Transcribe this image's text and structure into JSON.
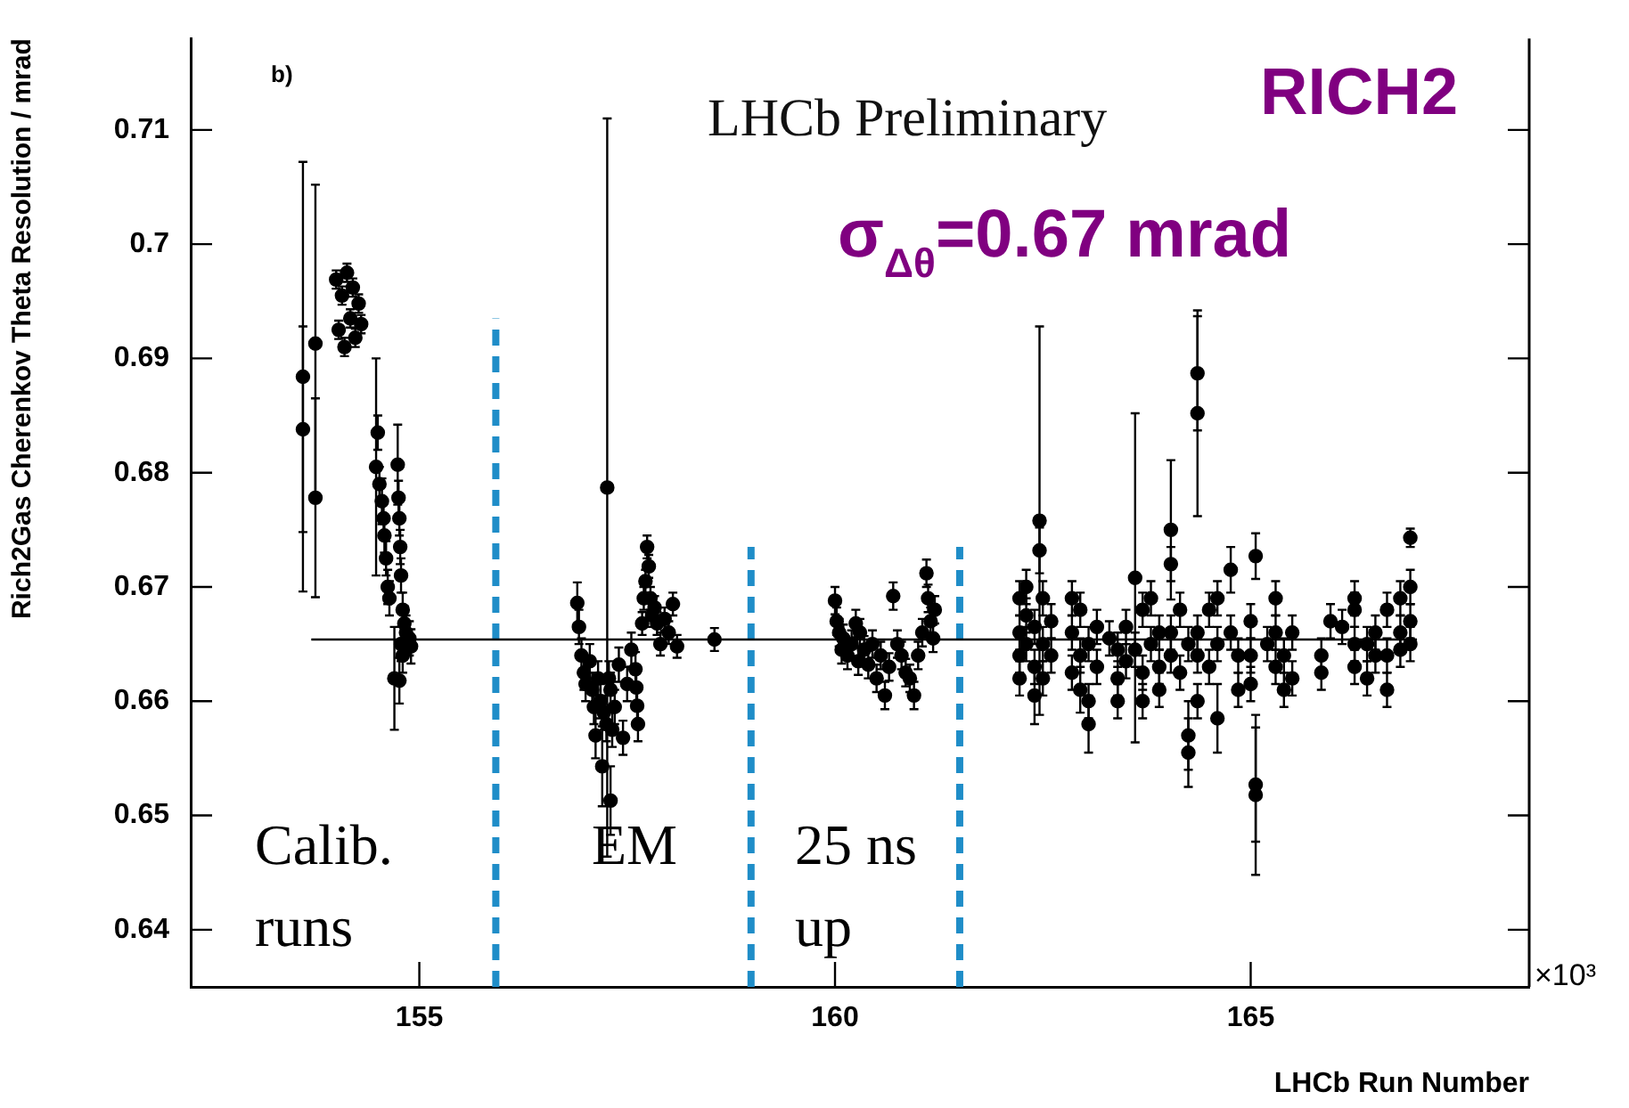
{
  "chart_data": {
    "type": "scatter",
    "xlabel": "LHCb Run Number",
    "ylabel": "Rich2Gas Cherenkov Theta Resolution / mrad",
    "xlim": [
      152.25,
      168.35
    ],
    "xticks": [
      155,
      160,
      165
    ],
    "ylim": [
      0.635,
      0.718
    ],
    "yticks": [
      0.64,
      0.65,
      0.66,
      0.67,
      0.68,
      0.69,
      0.7,
      0.71
    ],
    "grid": false,
    "legend": false,
    "marker": "circle",
    "annotations": [
      "b)",
      "LHCb Preliminary",
      "RICH2",
      "σ$_{Δθ}$=0.67 mrad",
      "Calib. runs",
      "EM",
      "25 ns up",
      "×10³"
    ],
    "series": [
      {
        "color": "#000000",
        "x": [
          153.6,
          153.6,
          153.75,
          153.75,
          154.0,
          154.03,
          154.07,
          154.1,
          154.13,
          154.17,
          154.2,
          154.23,
          154.27,
          154.3,
          154.48,
          154.5,
          154.52,
          154.55,
          154.57,
          154.6,
          154.62,
          154.58,
          154.64,
          154.74,
          154.75,
          154.76,
          154.77,
          154.78,
          154.8,
          154.82,
          154.84,
          154.78,
          154.8,
          154.9,
          154.76,
          154.88,
          154.7,
          156.9,
          156.92,
          156.95,
          156.98,
          157.0,
          157.05,
          157.08,
          157.1,
          157.12,
          157.15,
          157.18,
          157.2,
          157.22,
          157.25,
          157.26,
          157.28,
          157.3,
          157.3,
          157.32,
          157.35,
          157.4,
          157.45,
          157.5,
          157.55,
          157.6,
          157.61,
          157.62,
          157.63,
          157.68,
          157.7,
          157.72,
          157.74,
          157.76,
          157.78,
          157.8,
          157.83,
          157.86,
          157.9,
          157.95,
          158.0,
          158.05,
          158.1,
          158.55,
          160.0,
          160.02,
          160.05,
          160.08,
          160.1,
          160.15,
          160.2,
          160.25,
          160.28,
          160.3,
          160.35,
          160.4,
          160.45,
          160.5,
          160.55,
          160.6,
          160.65,
          160.7,
          160.75,
          160.8,
          160.85,
          160.9,
          160.95,
          161.0,
          161.05,
          161.1,
          161.12,
          161.15,
          161.18,
          161.2,
          162.22,
          162.22,
          162.22,
          162.22,
          162.3,
          162.3,
          162.3,
          162.4,
          162.4,
          162.4,
          162.46,
          162.46,
          162.5,
          162.5,
          162.5,
          162.6,
          162.6,
          162.85,
          162.85,
          162.85,
          162.95,
          162.95,
          162.95,
          163.05,
          163.05,
          163.05,
          163.15,
          163.15,
          163.3,
          163.4,
          163.4,
          163.4,
          163.5,
          163.5,
          163.61,
          163.61,
          163.7,
          163.7,
          163.7,
          163.8,
          163.8,
          163.9,
          163.9,
          163.9,
          164.04,
          164.04,
          164.04,
          164.04,
          164.15,
          164.15,
          164.25,
          164.25,
          164.25,
          164.36,
          164.36,
          164.36,
          164.36,
          164.36,
          164.5,
          164.5,
          164.6,
          164.6,
          164.6,
          164.76,
          164.76,
          164.85,
          164.85,
          165.0,
          165.0,
          165.0,
          165.06,
          165.06,
          165.06,
          165.2,
          165.3,
          165.3,
          165.3,
          165.4,
          165.4,
          165.5,
          165.5,
          165.85,
          165.85,
          165.96,
          166.1,
          166.25,
          166.25,
          166.25,
          166.25,
          166.4,
          166.4,
          166.5,
          166.5,
          166.64,
          166.64,
          166.64,
          166.8,
          166.8,
          166.8,
          166.92,
          166.92,
          166.92,
          166.92
        ],
        "values": [
          0.6884,
          0.6838,
          0.6913,
          0.6778,
          0.6969,
          0.6925,
          0.6955,
          0.691,
          0.6975,
          0.6935,
          0.6962,
          0.6918,
          0.6948,
          0.693,
          0.6805,
          0.6835,
          0.679,
          0.6775,
          0.676,
          0.6725,
          0.67,
          0.6745,
          0.669,
          0.6807,
          0.6778,
          0.676,
          0.6735,
          0.671,
          0.668,
          0.6668,
          0.666,
          0.665,
          0.664,
          0.6648,
          0.6618,
          0.6655,
          0.662,
          0.6686,
          0.6665,
          0.664,
          0.6625,
          0.6615,
          0.6635,
          0.661,
          0.6595,
          0.657,
          0.662,
          0.66,
          0.6543,
          0.659,
          0.658,
          0.6787,
          0.662,
          0.661,
          0.6513,
          0.6575,
          0.6595,
          0.6632,
          0.6568,
          0.6615,
          0.6645,
          0.6628,
          0.6612,
          0.6596,
          0.658,
          0.6668,
          0.669,
          0.6705,
          0.6735,
          0.6718,
          0.669,
          0.6675,
          0.6682,
          0.6668,
          0.665,
          0.6672,
          0.666,
          0.6685,
          0.6648,
          0.6654,
          0.6688,
          0.667,
          0.666,
          0.6645,
          0.6655,
          0.664,
          0.665,
          0.6668,
          0.6635,
          0.666,
          0.6645,
          0.6632,
          0.665,
          0.662,
          0.664,
          0.6605,
          0.663,
          0.6692,
          0.665,
          0.664,
          0.6625,
          0.662,
          0.6605,
          0.664,
          0.666,
          0.6712,
          0.669,
          0.667,
          0.6655,
          0.668,
          0.666,
          0.664,
          0.669,
          0.662,
          0.6675,
          0.665,
          0.67,
          0.663,
          0.6605,
          0.6665,
          0.6758,
          0.6732,
          0.669,
          0.665,
          0.662,
          0.664,
          0.667,
          0.669,
          0.666,
          0.6625,
          0.664,
          0.661,
          0.668,
          0.66,
          0.658,
          0.665,
          0.6665,
          0.663,
          0.6655,
          0.662,
          0.66,
          0.6645,
          0.6665,
          0.6635,
          0.6708,
          0.6645,
          0.668,
          0.6625,
          0.66,
          0.665,
          0.669,
          0.666,
          0.663,
          0.661,
          0.675,
          0.672,
          0.666,
          0.664,
          0.6625,
          0.668,
          0.657,
          0.6555,
          0.665,
          0.6887,
          0.6852,
          0.666,
          0.664,
          0.66,
          0.668,
          0.663,
          0.6585,
          0.665,
          0.669,
          0.6715,
          0.666,
          0.664,
          0.661,
          0.667,
          0.664,
          0.6615,
          0.6727,
          0.6527,
          0.6518,
          0.665,
          0.669,
          0.666,
          0.663,
          0.664,
          0.661,
          0.666,
          0.662,
          0.664,
          0.6625,
          0.667,
          0.6665,
          0.665,
          0.663,
          0.668,
          0.669,
          0.662,
          0.665,
          0.666,
          0.664,
          0.661,
          0.664,
          0.668,
          0.666,
          0.669,
          0.6645,
          0.6743,
          0.67,
          0.667,
          0.665
        ],
        "errors": [
          0.0188,
          0.009,
          0.0139,
          0.0087,
          0.0008,
          0.0008,
          0.0008,
          0.0008,
          0.0008,
          0.0008,
          0.0008,
          0.0008,
          0.0008,
          0.0008,
          0.0095,
          0.0015,
          0.0015,
          0.002,
          0.0015,
          0.0015,
          0.0015,
          0.0015,
          0.0015,
          0.0035,
          0.0015,
          0.0015,
          0.0015,
          0.0015,
          0.0015,
          0.0015,
          0.0015,
          0.0015,
          0.0015,
          0.0015,
          0.002,
          0.0015,
          0.0045,
          0.0018,
          0.0015,
          0.0015,
          0.0015,
          0.0015,
          0.0015,
          0.0015,
          0.0015,
          0.002,
          0.0015,
          0.0015,
          0.0035,
          0.0015,
          0.0015,
          0.0323,
          0.0015,
          0.0015,
          0.003,
          0.0015,
          0.0015,
          0.0015,
          0.0015,
          0.0015,
          0.0015,
          0.0015,
          0.0015,
          0.0015,
          0.0015,
          0.001,
          0.001,
          0.001,
          0.001,
          0.001,
          0.001,
          0.001,
          0.001,
          0.001,
          0.001,
          0.001,
          0.001,
          0.001,
          0.001,
          0.001,
          0.0012,
          0.0012,
          0.0012,
          0.0012,
          0.0012,
          0.0012,
          0.0012,
          0.0012,
          0.0012,
          0.0012,
          0.0012,
          0.0012,
          0.0012,
          0.0012,
          0.0012,
          0.0012,
          0.0012,
          0.0012,
          0.0012,
          0.0012,
          0.0012,
          0.0012,
          0.0012,
          0.0012,
          0.0012,
          0.0012,
          0.0012,
          0.0012,
          0.0012,
          0.0012,
          0.0015,
          0.0015,
          0.0015,
          0.0015,
          0.0015,
          0.0015,
          0.0015,
          0.0015,
          0.0025,
          0.0015,
          0.017,
          0.002,
          0.0015,
          0.0015,
          0.0015,
          0.0015,
          0.0015,
          0.0015,
          0.0015,
          0.0015,
          0.0015,
          0.002,
          0.0015,
          0.0015,
          0.0025,
          0.0015,
          0.0015,
          0.0015,
          0.0015,
          0.0015,
          0.0015,
          0.0015,
          0.0015,
          0.0015,
          0.0144,
          0.0015,
          0.0015,
          0.0015,
          0.0015,
          0.0015,
          0.0015,
          0.0015,
          0.0015,
          0.0015,
          0.0061,
          0.0015,
          0.0015,
          0.0015,
          0.0015,
          0.0015,
          0.003,
          0.003,
          0.0015,
          0.005,
          0.009,
          0.0015,
          0.0015,
          0.0015,
          0.0015,
          0.0015,
          0.003,
          0.0015,
          0.0015,
          0.002,
          0.0015,
          0.0015,
          0.0015,
          0.0015,
          0.0015,
          0.0015,
          0.002,
          0.005,
          0.007,
          0.0015,
          0.0015,
          0.0015,
          0.0015,
          0.0015,
          0.0015,
          0.0015,
          0.0015,
          0.0015,
          0.0015,
          0.0015,
          0.0015,
          0.0015,
          0.0015,
          0.0015,
          0.0015,
          0.0015,
          0.0015,
          0.0015,
          0.0015,
          0.0015,
          0.0015,
          0.0015,
          0.0015,
          0.0015,
          0.0015,
          0.0008,
          0.0015,
          0.0015,
          0.0015
        ]
      },
      {
        "type": "line",
        "color": "#000000",
        "marker": "none",
        "line_style": "solid",
        "x": [
          153.7,
          167.0
        ],
        "values": [
          0.6654,
          0.6654
        ]
      },
      {
        "type": "line",
        "color": "#1f8dc8",
        "marker": "none",
        "line_style": "dashed",
        "x": [
          155.92,
          155.92
        ],
        "values": [
          0.635,
          0.6935
        ]
      },
      {
        "type": "line",
        "color": "#1f8dc8",
        "marker": "none",
        "line_style": "dashed",
        "x": [
          158.99,
          158.99
        ],
        "values": [
          0.635,
          0.6735
        ]
      },
      {
        "type": "line",
        "color": "#1f8dc8",
        "marker": "none",
        "line_style": "dashed",
        "x": [
          161.5,
          161.5
        ],
        "values": [
          0.635,
          0.6735
        ]
      }
    ]
  }
}
